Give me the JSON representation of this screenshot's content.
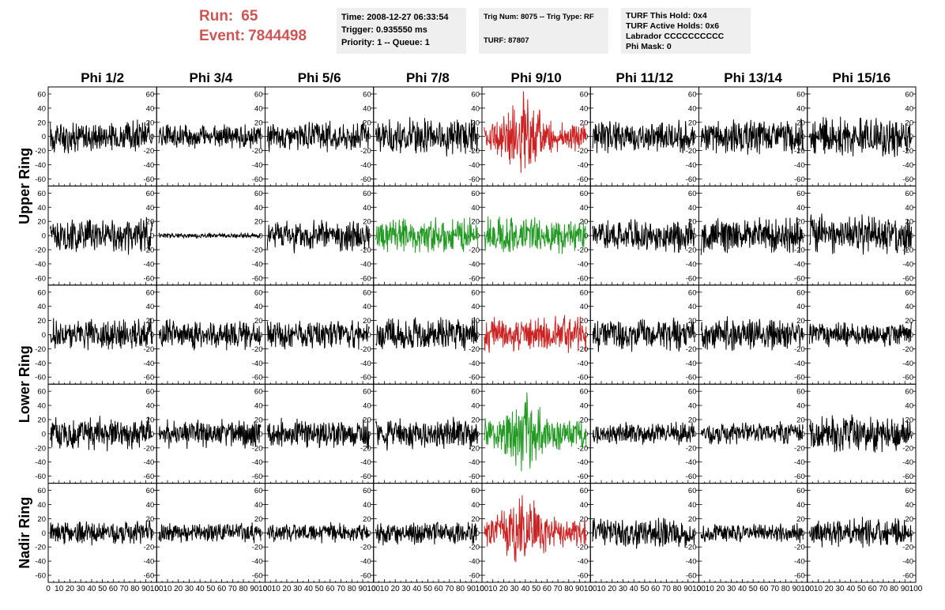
{
  "header": {
    "run_label": "Run:",
    "run_value": "65",
    "event_label": "Event:",
    "event_value": "7844498"
  },
  "info_boxes": {
    "time": "Time: 2008-12-27 06:33:54",
    "trigger": "Trigger: 0.935550 ms",
    "priority": "Priority: 1 -- Queue: 1",
    "trig_num": "Trig Num: 8075 -- Trig Type: RF",
    "turf": "TURF: 87807",
    "turf_hold": "TURF This Hold: 0x4",
    "turf_active": "TURF Active Holds: 0x6",
    "labrador": "Labrador CCCCCCCCCC",
    "phi_mask": "Phi Mask: 0"
  },
  "chart_data": {
    "type": "line",
    "columns": [
      "Phi 1/2",
      "Phi 3/4",
      "Phi 5/6",
      "Phi 7/8",
      "Phi 9/10",
      "Phi 11/12",
      "Phi 13/14",
      "Phi 15/16"
    ],
    "ring_labels": [
      {
        "label": "Upper Ring",
        "rows": [
          0,
          1
        ]
      },
      {
        "label": "Lower Ring",
        "rows": [
          2,
          3
        ]
      },
      {
        "label": "Nadir Ring",
        "rows": [
          4
        ]
      }
    ],
    "rows": 5,
    "xlim": [
      0,
      100
    ],
    "ylim": [
      -70,
      70
    ],
    "yticks": [
      -60,
      -40,
      -20,
      0,
      20,
      40,
      60
    ],
    "xticks": [
      0,
      10,
      20,
      30,
      40,
      50,
      60,
      70,
      80,
      90,
      100
    ],
    "colors": {
      "normal": "#000000",
      "red": "#cc2222",
      "green": "#229922"
    },
    "waveform_amplitude": [
      [
        20,
        15,
        18,
        22,
        30,
        20,
        22,
        25
      ],
      [
        22,
        3,
        20,
        22,
        22,
        20,
        22,
        25
      ],
      [
        20,
        18,
        18,
        20,
        22,
        20,
        20,
        15
      ],
      [
        20,
        18,
        18,
        20,
        30,
        14,
        14,
        22
      ],
      [
        15,
        12,
        12,
        14,
        28,
        18,
        12,
        18
      ]
    ],
    "waveform_color": [
      [
        "normal",
        "normal",
        "normal",
        "normal",
        "red",
        "normal",
        "normal",
        "normal"
      ],
      [
        "normal",
        "normal",
        "normal",
        "green",
        "green",
        "normal",
        "normal",
        "normal"
      ],
      [
        "normal",
        "normal",
        "normal",
        "normal",
        "red",
        "normal",
        "normal",
        "normal"
      ],
      [
        "normal",
        "normal",
        "normal",
        "normal",
        "green",
        "normal",
        "normal",
        "normal"
      ],
      [
        "normal",
        "normal",
        "normal",
        "normal",
        "red",
        "normal",
        "normal",
        "normal"
      ]
    ]
  }
}
